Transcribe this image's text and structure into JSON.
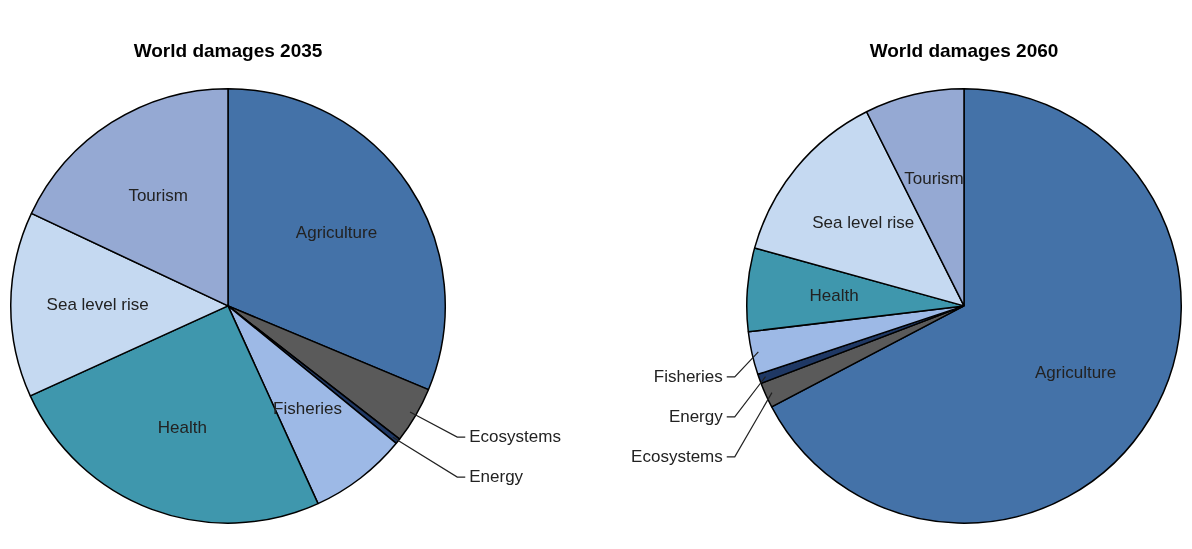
{
  "chart_data": [
    {
      "type": "pie",
      "title": "World damages 2035",
      "categories": [
        "Agriculture",
        "Ecosystems",
        "Energy",
        "Fisheries",
        "Health",
        "Sea level rise",
        "Tourism"
      ],
      "values": [
        31.3,
        4.2,
        0.4,
        7.3,
        25.0,
        13.8,
        18.0
      ],
      "colors": [
        "#4472a8",
        "#5a5a5a",
        "#1f3864",
        "#9db9e6",
        "#3f97ad",
        "#c5d9f1",
        "#95a9d3"
      ],
      "legend": false
    },
    {
      "type": "pie",
      "title": "World damages 2060",
      "categories": [
        "Agriculture",
        "Ecosystems",
        "Energy",
        "Fisheries",
        "Health",
        "Sea level rise",
        "Tourism"
      ],
      "values": [
        67.3,
        1.9,
        0.7,
        3.2,
        6.2,
        13.3,
        7.4
      ],
      "colors": [
        "#4472a8",
        "#5a5a5a",
        "#1f3864",
        "#9db9e6",
        "#3f97ad",
        "#c5d9f1",
        "#95a9d3"
      ],
      "legend": false
    }
  ]
}
